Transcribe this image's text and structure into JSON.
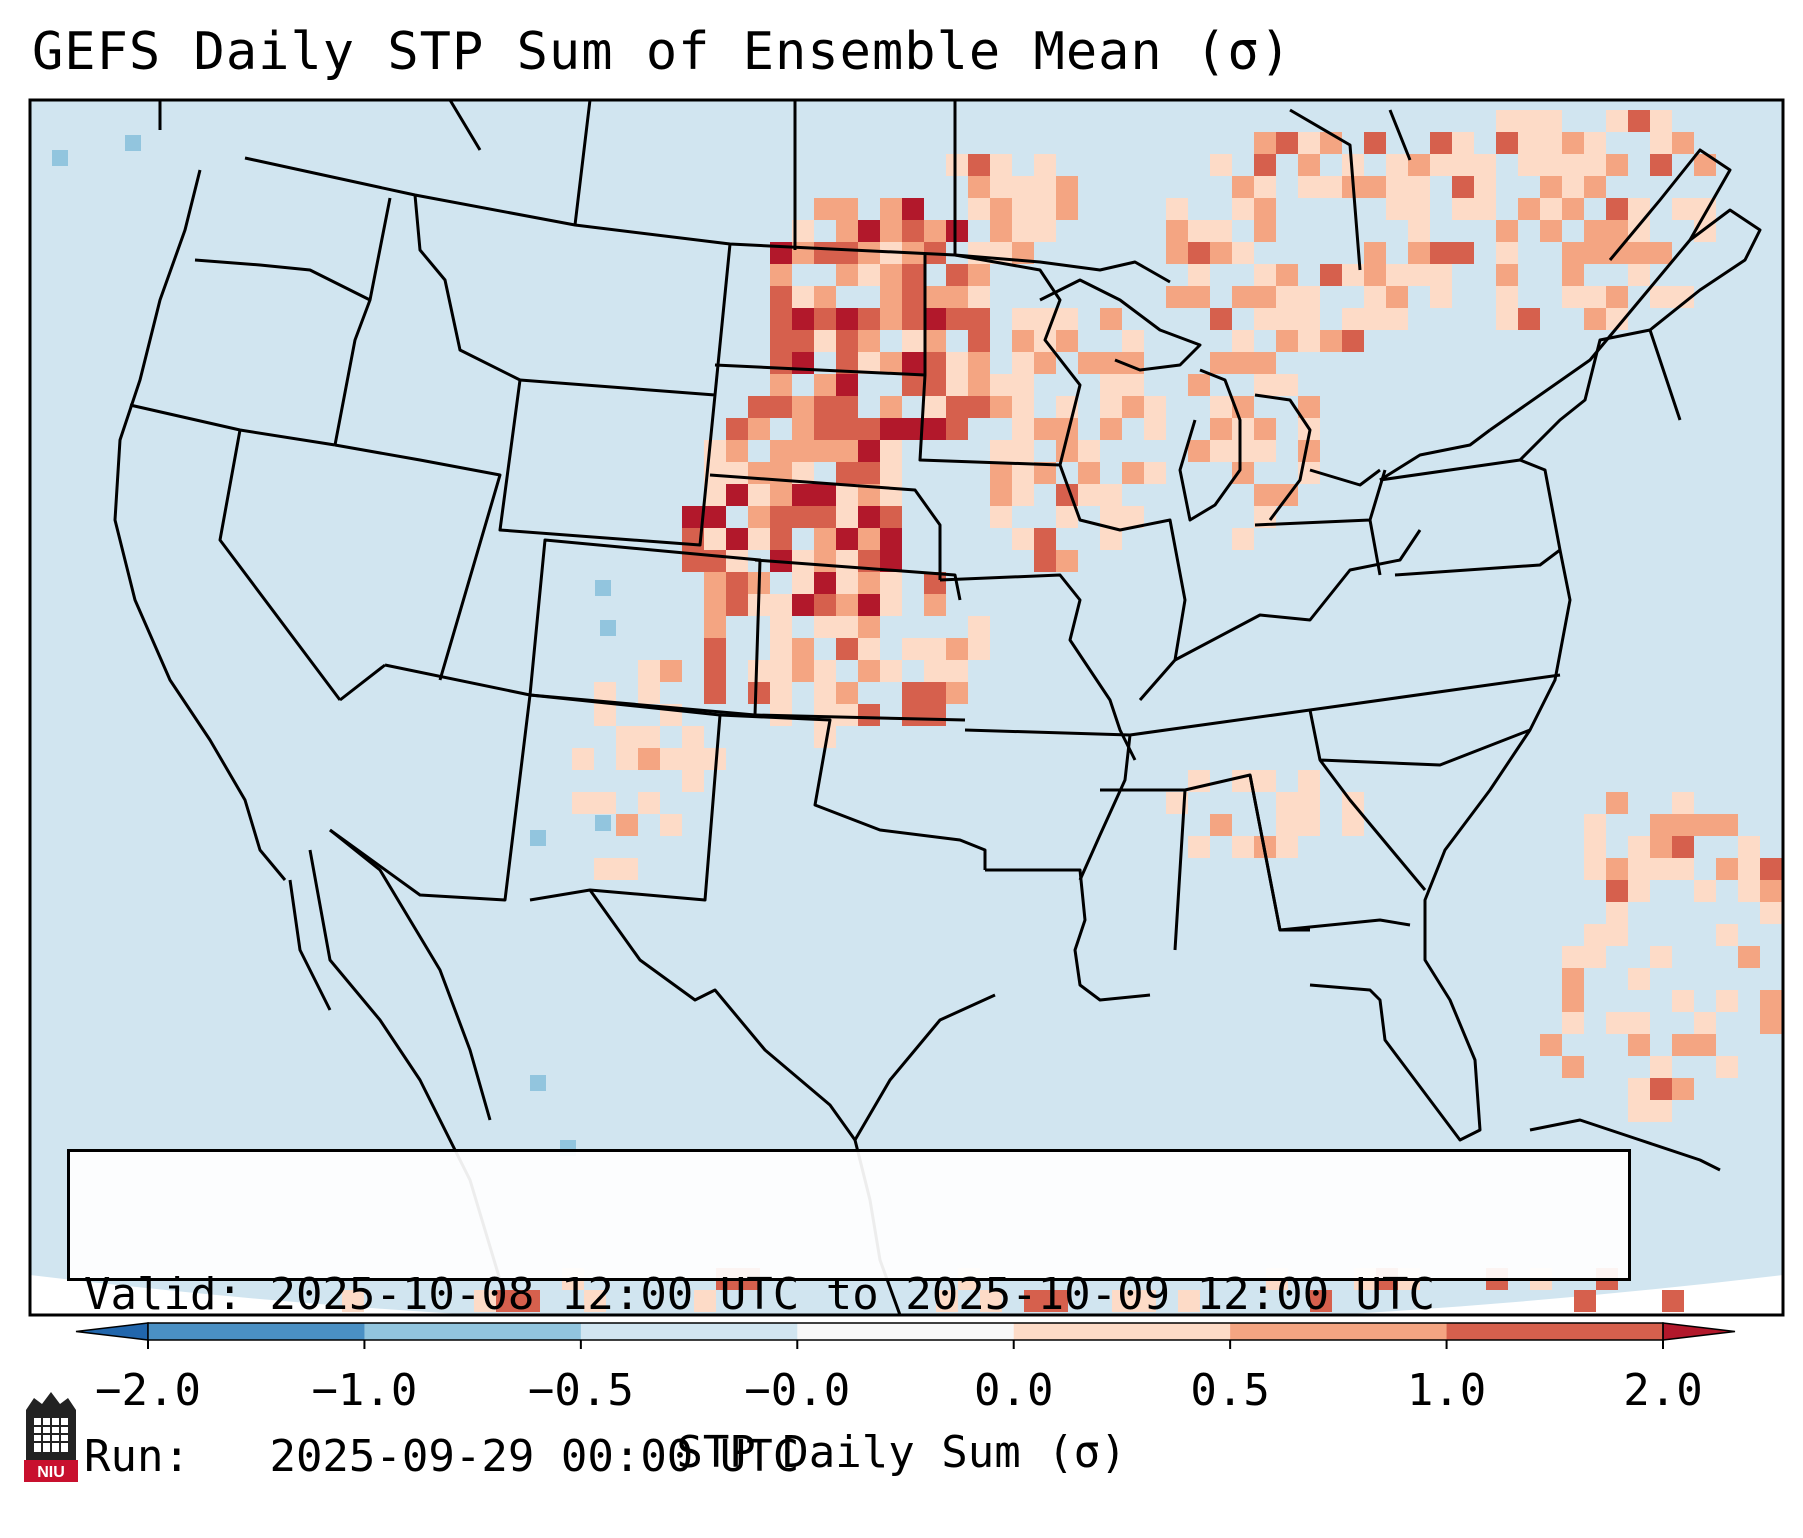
{
  "title": "GEFS Daily STP Sum of Ensemble Mean (σ)",
  "info": {
    "valid_label": "Valid:",
    "valid_text": "2025-10-08 12:00 UTC to 2025-10-09 12:00 UTC",
    "run_label": "Run:",
    "run_text": "2025-09-29 00:00 UTC"
  },
  "colorbar": {
    "label": "STP Daily Sum (σ)",
    "ticks": [
      "−2.0",
      "−1.0",
      "−0.5",
      "−0.0",
      "0.0",
      "0.5",
      "1.0",
      "2.0"
    ],
    "segment_colors": [
      "#4a90c4",
      "#92c5de",
      "#d1e5f0",
      "#f7f7f7",
      "#fddbc7",
      "#f4a582",
      "#d6604d"
    ],
    "under_color": "#2166ac",
    "over_color": "#b2182b"
  },
  "map": {
    "background_color": "#d1e5f0",
    "region": "Contiguous United States and surroundings",
    "projection": "Lambert Conformal"
  },
  "logo": {
    "text": "NIU",
    "icon": "niu-tower-icon"
  },
  "colors": {
    "low": "#fddbc7",
    "mid": "#f4a582",
    "high": "#d6604d",
    "max": "#b2182b",
    "neg": "#92c5de"
  }
}
